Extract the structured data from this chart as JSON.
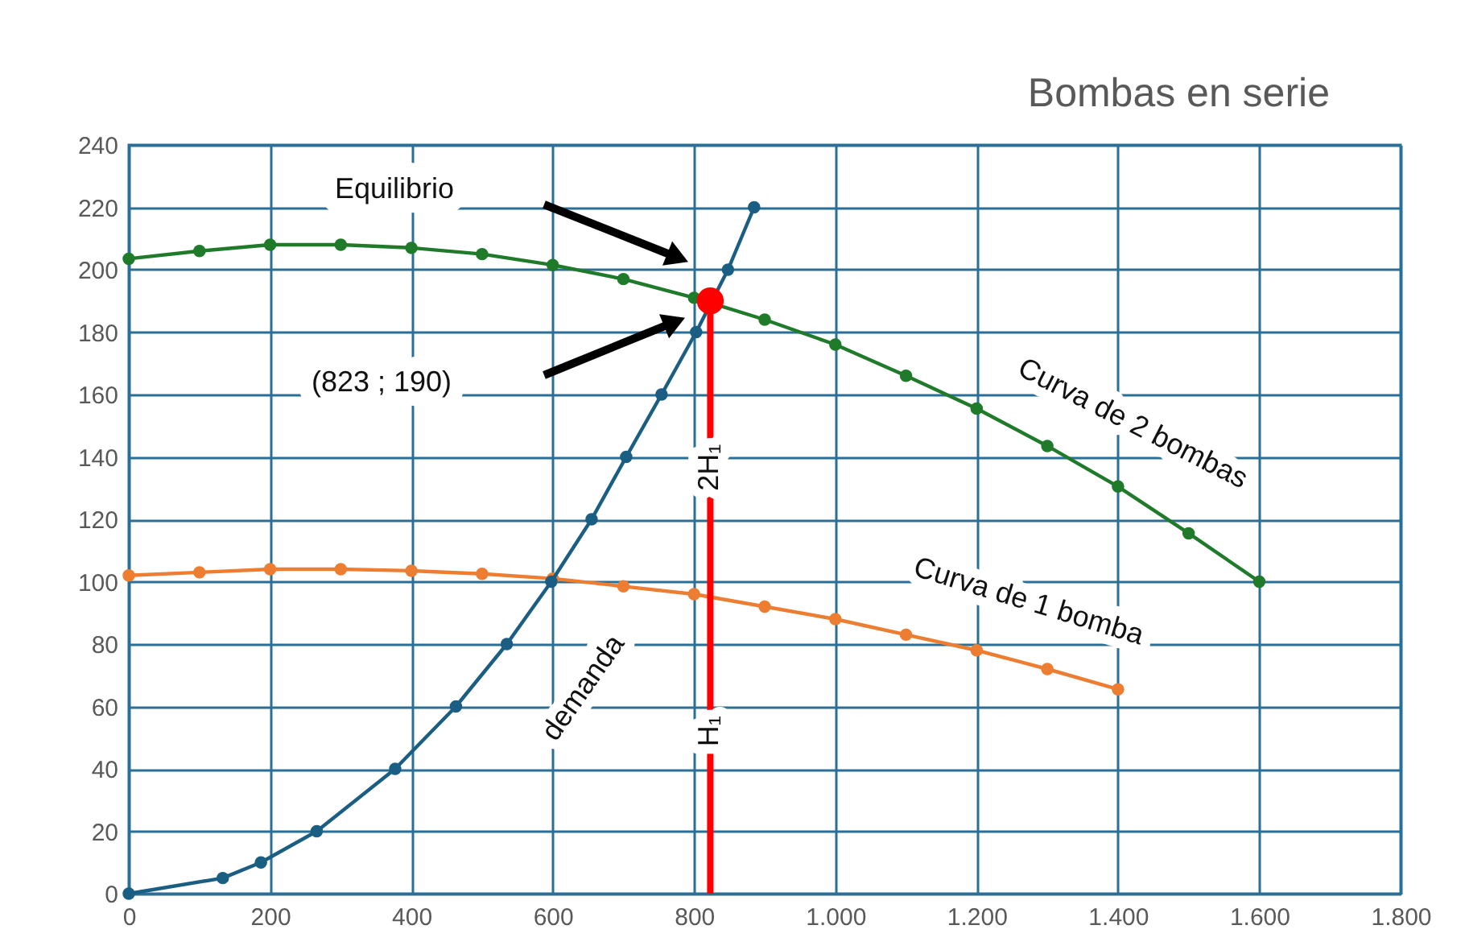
{
  "chart_data": {
    "type": "line",
    "title": "Bombas en serie",
    "xlim": [
      0,
      1800
    ],
    "ylim": [
      0,
      240
    ],
    "xticks": [
      0,
      200,
      400,
      600,
      800,
      {
        "value": 1000,
        "label": "1.000"
      },
      {
        "value": 1200,
        "label": "1.200"
      },
      {
        "value": 1400,
        "label": "1.400"
      },
      {
        "value": 1600,
        "label": "1.600"
      },
      {
        "value": 1800,
        "label": "1.800"
      }
    ],
    "yticks": [
      0,
      20,
      40,
      60,
      80,
      100,
      120,
      140,
      160,
      180,
      200,
      220,
      240
    ],
    "grid": true,
    "marker": "circle",
    "series": [
      {
        "name": "Curva de 2 bombas",
        "color": "#1f7a2a",
        "x": [
          0,
          100,
          200,
          300,
          400,
          500,
          600,
          700,
          800,
          900,
          1000,
          1100,
          1200,
          1300,
          1400,
          1500,
          1600
        ],
        "values": [
          203.5,
          206,
          208,
          208,
          207,
          205,
          201.5,
          197,
          191,
          184,
          176,
          166,
          155.5,
          143.5,
          130.5,
          115.5,
          100
        ]
      },
      {
        "name": "Curva de 1 bomba",
        "color": "#ed7d31",
        "x": [
          0,
          100,
          200,
          300,
          400,
          500,
          600,
          700,
          800,
          900,
          1000,
          1100,
          1200,
          1300,
          1400
        ],
        "values": [
          102,
          103,
          104,
          104,
          103.5,
          102.5,
          101,
          98.5,
          96,
          92,
          88,
          83,
          78,
          72,
          65.5
        ]
      },
      {
        "name": "demanda",
        "color": "#1b5e83",
        "x": [
          0,
          133,
          187,
          266,
          377,
          463,
          535,
          598,
          655,
          704,
          754,
          803,
          848,
          885
        ],
        "values": [
          0,
          5,
          10,
          20,
          40,
          60,
          80,
          100,
          120,
          140,
          160,
          180,
          200,
          220
        ]
      },
      {
        "type": "line",
        "marker": "none",
        "color": "#ff0000",
        "x": [
          823,
          823
        ],
        "values": [
          0,
          190
        ]
      },
      {
        "type": "scatter",
        "color": "#ff0000",
        "x": [
          823
        ],
        "values": [
          190
        ]
      }
    ],
    "annotations": [
      "Equilibrio",
      "(823 ; 190)",
      {
        "text": "2H₁",
        "x": 823,
        "y": 133
      },
      {
        "text": "H₁",
        "x": 823,
        "y": 50
      }
    ]
  }
}
